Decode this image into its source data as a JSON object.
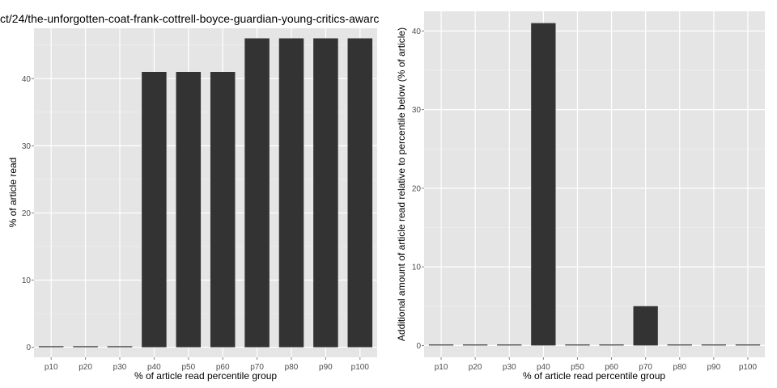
{
  "chart_data": [
    {
      "type": "bar",
      "title": "ct/24/the-unforgotten-coat-frank-cottrell-boyce-guardian-young-critics-awarc",
      "xlabel": "% of article read percentile group",
      "ylabel": "% of article read",
      "categories": [
        "p10",
        "p20",
        "p30",
        "p40",
        "p50",
        "p60",
        "p70",
        "p80",
        "p90",
        "p100"
      ],
      "values": [
        0,
        0,
        0,
        41,
        41,
        41,
        46,
        46,
        46,
        46
      ],
      "ylim": [
        -1.5,
        47.5
      ],
      "yticks": [
        0,
        10,
        20,
        30,
        40
      ],
      "grid": true,
      "bar_color": "#333333",
      "panel_color": "#e5e5e5",
      "grid_color": "#ffffff"
    },
    {
      "type": "bar",
      "title": "",
      "xlabel": "% of article read percentile group",
      "ylabel": "Additional amount of article read relative to percentile below (% of article)",
      "categories": [
        "p10",
        "p20",
        "p30",
        "p40",
        "p50",
        "p60",
        "p70",
        "p80",
        "p90",
        "p100"
      ],
      "values": [
        0,
        0,
        0,
        41,
        0,
        0,
        5,
        0,
        0,
        0
      ],
      "ylim": [
        -1.5,
        42.5
      ],
      "yticks": [
        0,
        10,
        20,
        30,
        40
      ],
      "grid": true,
      "bar_color": "#333333",
      "panel_color": "#e5e5e5",
      "grid_color": "#ffffff"
    }
  ]
}
